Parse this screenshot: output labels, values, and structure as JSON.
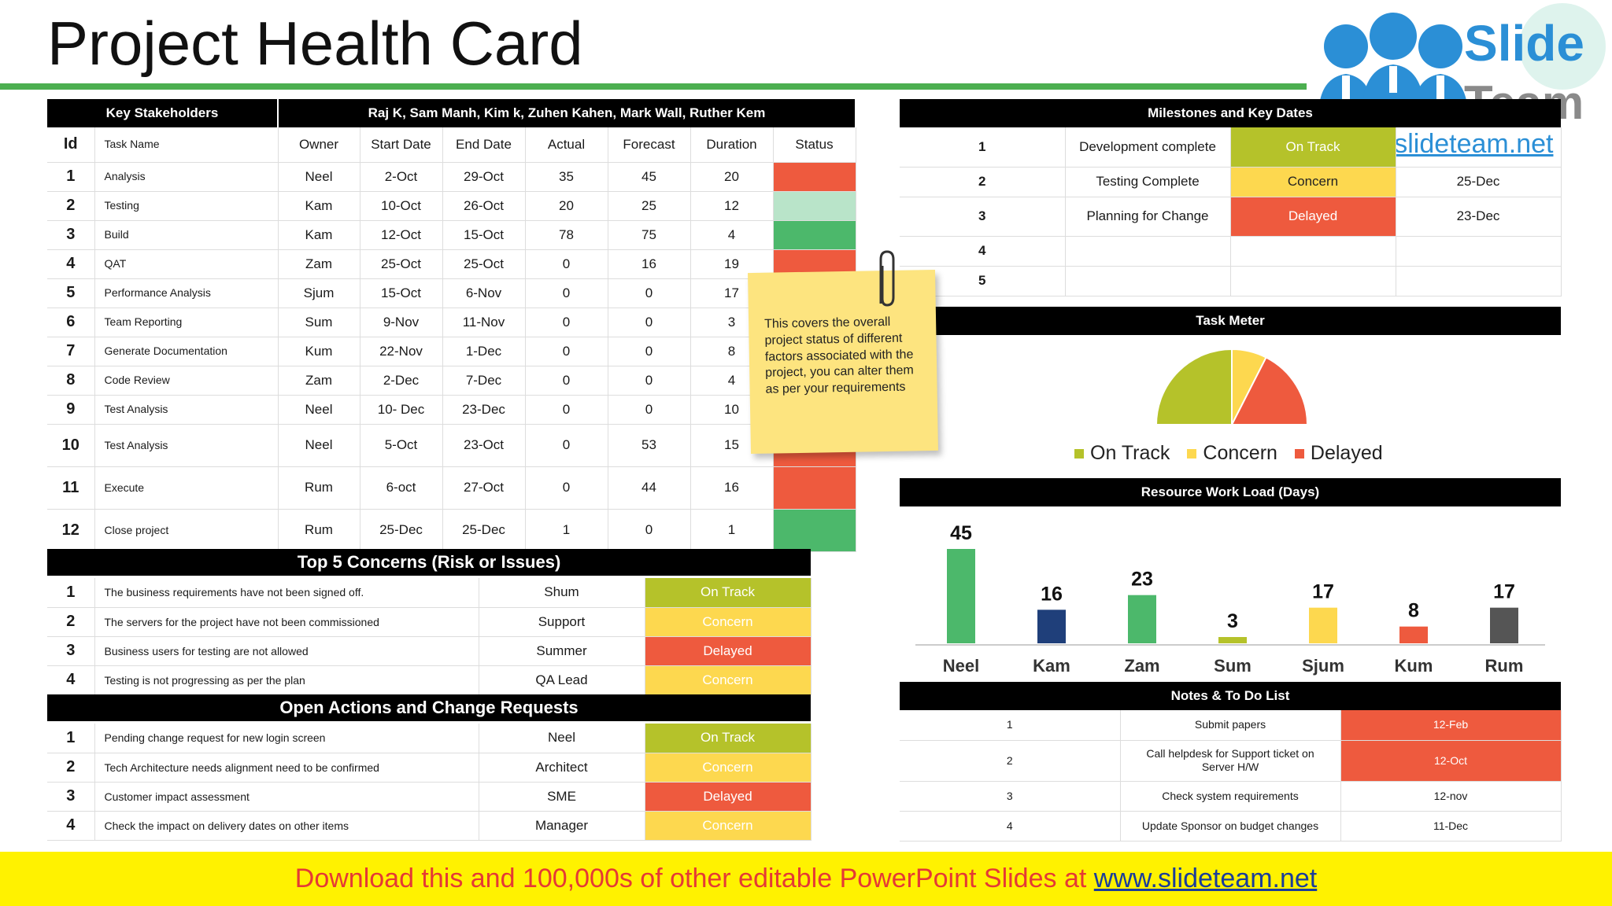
{
  "title": "Project Health Card",
  "logo": {
    "word1": "Slide",
    "word2": "Team",
    "url": "www.slideteam.net"
  },
  "colors": {
    "red": "#ee5a3e",
    "green": "#4cb86b",
    "light_green": "#b9e4c9",
    "olive": "#b5c22a",
    "yellow": "#fdd84f",
    "accent_green": "#4caf50"
  },
  "stakeholders": {
    "label": "Key Stakeholders",
    "names": "Raj K, Sam Manh, Kim k, Zuhen Kahen, Mark Wall, Ruther Kem"
  },
  "task_columns": [
    "Id",
    "Task Name",
    "Owner",
    "Start Date",
    "End Date",
    "Actual",
    "Forecast",
    "Duration",
    "Status"
  ],
  "tasks": [
    {
      "id": "1",
      "name": "Analysis",
      "owner": "Neel",
      "start": "2-Oct",
      "end": "29-Oct",
      "actual": "35",
      "forecast": "45",
      "duration": "20",
      "status": "red"
    },
    {
      "id": "2",
      "name": "Testing",
      "owner": "Kam",
      "start": "10-Oct",
      "end": "26-Oct",
      "actual": "20",
      "forecast": "25",
      "duration": "12",
      "status": "light_green"
    },
    {
      "id": "3",
      "name": "Build",
      "owner": "Kam",
      "start": "12-Oct",
      "end": "15-Oct",
      "actual": "78",
      "forecast": "75",
      "duration": "4",
      "status": "green"
    },
    {
      "id": "4",
      "name": "QAT",
      "owner": "Zam",
      "start": "25-Oct",
      "end": "25-Oct",
      "actual": "0",
      "forecast": "16",
      "duration": "19",
      "status": "red"
    },
    {
      "id": "5",
      "name": "Performance Analysis",
      "owner": "Sjum",
      "start": "15-Oct",
      "end": "6-Nov",
      "actual": "0",
      "forecast": "0",
      "duration": "17",
      "status": "green"
    },
    {
      "id": "6",
      "name": "Team Reporting",
      "owner": "Sum",
      "start": "9-Nov",
      "end": "11-Nov",
      "actual": "0",
      "forecast": "0",
      "duration": "3",
      "status": "green"
    },
    {
      "id": "7",
      "name": "Generate Documentation",
      "owner": "Kum",
      "start": "22-Nov",
      "end": "1-Dec",
      "actual": "0",
      "forecast": "0",
      "duration": "8",
      "status": "green"
    },
    {
      "id": "8",
      "name": "Code Review",
      "owner": "Zam",
      "start": "2-Dec",
      "end": "7-Dec",
      "actual": "0",
      "forecast": "0",
      "duration": "4",
      "status": "green"
    },
    {
      "id": "9",
      "name": "Test Analysis",
      "owner": "Neel",
      "start": "10- Dec",
      "end": "23-Dec",
      "actual": "0",
      "forecast": "0",
      "duration": "10",
      "status": "green"
    },
    {
      "id": "10",
      "name": "Test Analysis",
      "owner": "Neel",
      "start": "5-Oct",
      "end": "23-Oct",
      "actual": "0",
      "forecast": "53",
      "duration": "15",
      "status": "red"
    },
    {
      "id": "11",
      "name": "Execute",
      "owner": "Rum",
      "start": "6-oct",
      "end": "27-Oct",
      "actual": "0",
      "forecast": "44",
      "duration": "16",
      "status": "red"
    },
    {
      "id": "12",
      "name": "Close project",
      "owner": "Rum",
      "start": "25-Dec",
      "end": "25-Dec",
      "actual": "1",
      "forecast": "0",
      "duration": "1",
      "status": "green"
    }
  ],
  "concerns": {
    "title": "Top 5 Concerns (Risk or Issues)",
    "items": [
      {
        "id": "1",
        "text": "The business requirements have not been signed off.",
        "owner": "Shum",
        "status": "On Track",
        "color": "olive"
      },
      {
        "id": "2",
        "text": "The servers for the project have not been commissioned",
        "owner": "Support",
        "status": "Concern",
        "color": "yellow"
      },
      {
        "id": "3",
        "text": "Business users for testing are not allowed",
        "owner": "Summer",
        "status": "Delayed",
        "color": "red"
      },
      {
        "id": "4",
        "text": "Testing is not progressing as per the plan",
        "owner": "QA Lead",
        "status": "Concern",
        "color": "yellow"
      }
    ]
  },
  "actions": {
    "title": "Open Actions and Change Requests",
    "items": [
      {
        "id": "1",
        "text": "Pending change request for new login screen",
        "owner": "Neel",
        "status": "On Track",
        "color": "olive"
      },
      {
        "id": "2",
        "text": "Tech Architecture needs alignment need to be confirmed",
        "owner": "Architect",
        "status": "Concern",
        "color": "yellow"
      },
      {
        "id": "3",
        "text": "Customer impact assessment",
        "owner": "SME",
        "status": "Delayed",
        "color": "red"
      },
      {
        "id": "4",
        "text": "Check the impact on delivery dates on other items",
        "owner": "Manager",
        "status": "Concern",
        "color": "yellow"
      }
    ]
  },
  "milestones": {
    "title": "Milestones and Key Dates",
    "items": [
      {
        "id": "1",
        "name": "Development complete",
        "status": "On Track",
        "color": "olive",
        "date": ""
      },
      {
        "id": "2",
        "name": "Testing Complete",
        "status": "Concern",
        "color": "yellow",
        "date": "25-Dec"
      },
      {
        "id": "3",
        "name": "Planning for Change",
        "status": "Delayed",
        "color": "red",
        "date": "23-Dec"
      },
      {
        "id": "4",
        "name": "",
        "status": "",
        "color": "",
        "date": ""
      },
      {
        "id": "5",
        "name": "",
        "status": "",
        "color": "",
        "date": ""
      }
    ]
  },
  "sticky_note": "This covers the overall project status of different factors associated with the project, you can alter them as per your requirements",
  "task_meter": {
    "title": "Task Meter",
    "slices": [
      {
        "label": "On Track",
        "value": 50,
        "color": "#b5c22a"
      },
      {
        "label": "Concern",
        "value": 15,
        "color": "#fdd84f"
      },
      {
        "label": "Delayed",
        "value": 35,
        "color": "#ee5a3e"
      }
    ]
  },
  "chart_data": {
    "type": "bar",
    "title": "Resource Work Load (Days)",
    "categories": [
      "Neel",
      "Kam",
      "Zam",
      "Sum",
      "Sjum",
      "Kum",
      "Rum"
    ],
    "values": [
      45,
      16,
      23,
      3,
      17,
      8,
      17
    ],
    "colors": [
      "#4cb86b",
      "#1f3f7a",
      "#4cb86b",
      "#b5c22a",
      "#fdd84f",
      "#ee5a3e",
      "#555555"
    ],
    "ylim": [
      0,
      45
    ]
  },
  "notes": {
    "title": "Notes & To Do List",
    "items": [
      {
        "id": "1",
        "text": "Submit papers",
        "date": "12-Feb",
        "highlight": true
      },
      {
        "id": "2",
        "text": "Call helpdesk for Support ticket on Server H/W",
        "date": "12-Oct",
        "highlight": true
      },
      {
        "id": "3",
        "text": "Check system requirements",
        "date": "12-nov",
        "highlight": false
      },
      {
        "id": "4",
        "text": "Update Sponsor on budget changes",
        "date": "11-Dec",
        "highlight": false
      }
    ]
  },
  "footer": {
    "text": "Download this and 100,000s of other editable PowerPoint Slides at ",
    "link": "www.slideteam.net"
  }
}
